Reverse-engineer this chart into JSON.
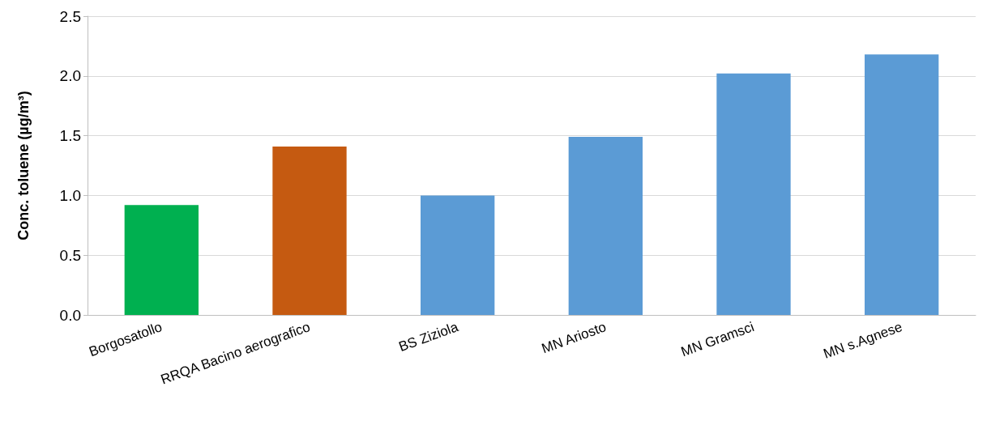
{
  "chart_data": {
    "type": "bar",
    "ylabel": "Conc. toluene (µg/m³)",
    "categories": [
      "Borgosatollo",
      "RRQA Bacino aerografico",
      "BS Ziziola",
      "MN Ariosto",
      "MN Gramsci",
      "MN s.Agnese"
    ],
    "values": [
      0.92,
      1.41,
      1.0,
      1.49,
      2.02,
      2.18
    ],
    "colors": [
      "#00b050",
      "#c55a11",
      "#5b9bd5",
      "#5b9bd5",
      "#5b9bd5",
      "#5b9bd5"
    ],
    "ylim": [
      0,
      2.5
    ],
    "yticks": [
      {
        "value": 0,
        "label": "0.0"
      },
      {
        "value": 0.5,
        "label": "0.5"
      },
      {
        "value": 1,
        "label": "1.0"
      },
      {
        "value": 1.5,
        "label": "1.5"
      },
      {
        "value": 2,
        "label": "2.0"
      },
      {
        "value": 2.5,
        "label": "2.5"
      }
    ],
    "grid": true
  }
}
